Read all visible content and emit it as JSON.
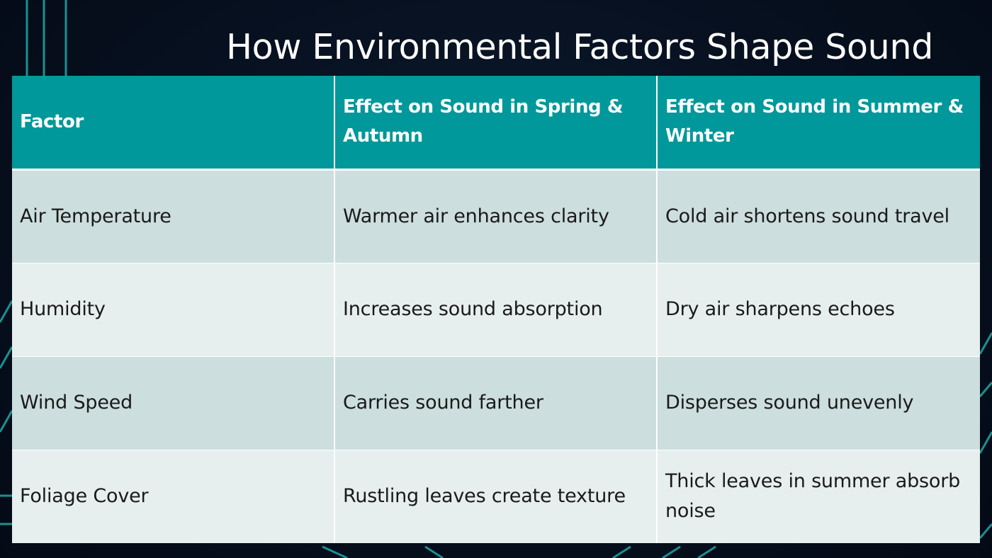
{
  "slide": {
    "title": "How Environmental Factors Shape Sound"
  },
  "table": {
    "headers": [
      "Factor",
      "Effect on Sound in Spring & Autumn",
      "Effect on Sound in Summer & Winter"
    ],
    "rows": [
      [
        "Air Temperature",
        "Warmer air enhances clarity",
        "Cold air shortens sound travel"
      ],
      [
        "Humidity",
        "Increases sound absorption",
        "Dry air sharpens echoes"
      ],
      [
        "Wind Speed",
        "Carries sound farther",
        "Disperses sound unevenly"
      ],
      [
        "Foliage Cover",
        "Rustling leaves create texture",
        "Thick leaves in summer absorb noise"
      ]
    ]
  },
  "colors": {
    "header_fill": "#00989a",
    "row_dark": "#ccdedd",
    "row_light": "#e6efee",
    "background": "#07101f",
    "accent_lines": "#1fa7a6"
  }
}
